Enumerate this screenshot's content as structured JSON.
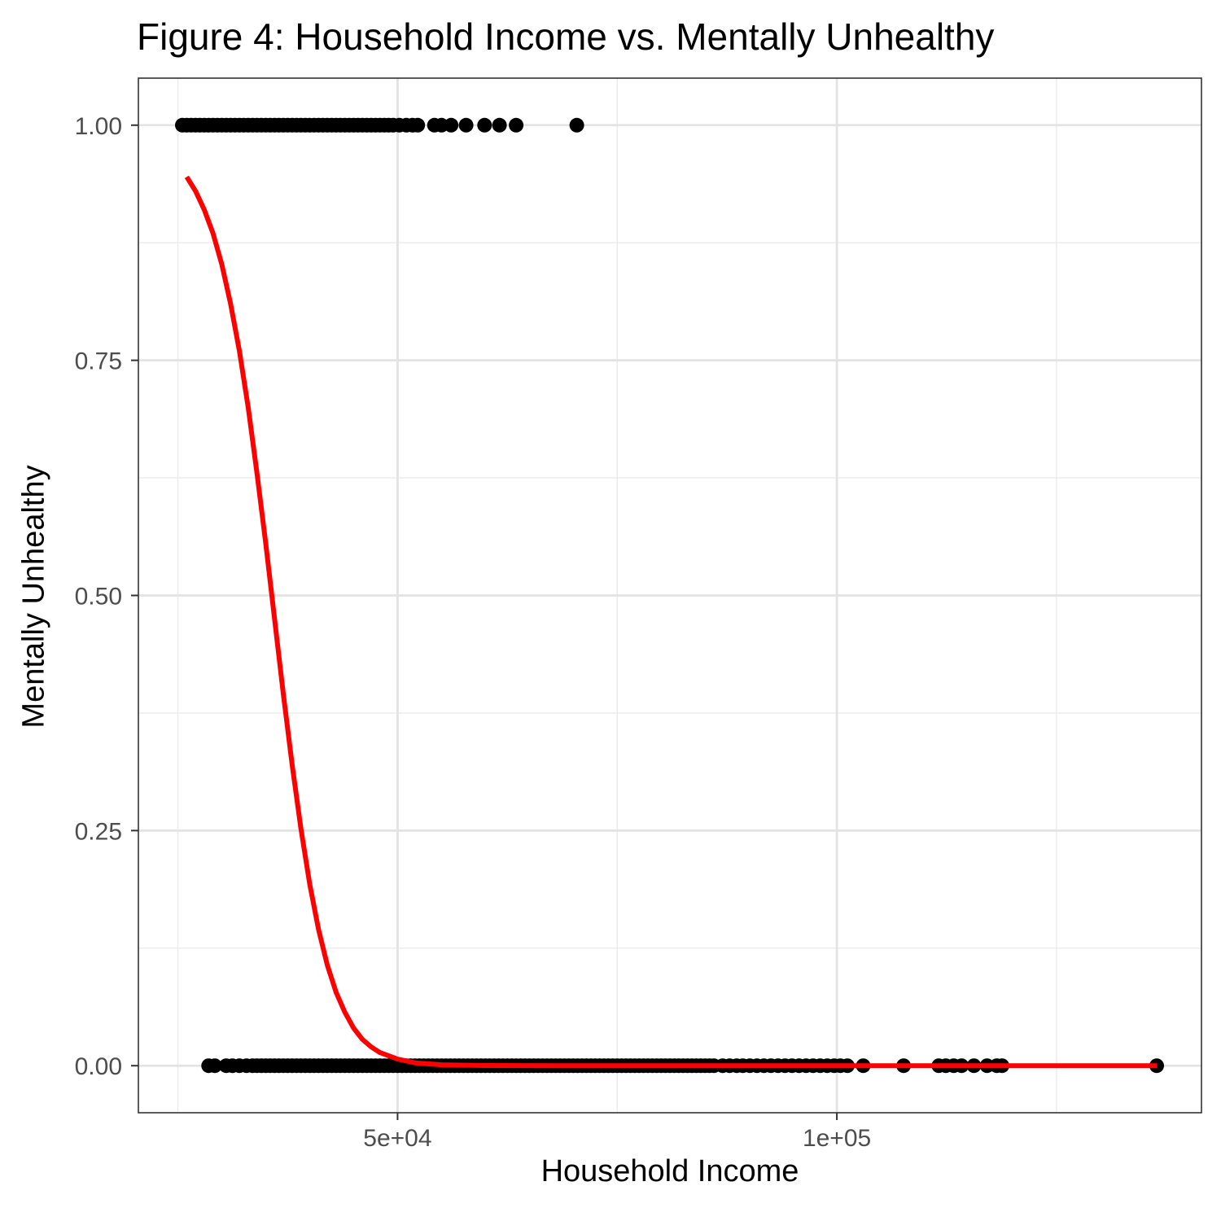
{
  "chart_data": {
    "type": "scatter",
    "title": "Figure 4: Household Income vs. Mentally Unhealthy",
    "xlabel": "Household Income",
    "ylabel": "Mentally Unhealthy",
    "xlim": [
      20500,
      141500
    ],
    "ylim": [
      -0.05,
      1.05
    ],
    "x_ticks": [
      {
        "value": 50000,
        "label": "5e+04"
      },
      {
        "value": 100000,
        "label": "1e+05"
      }
    ],
    "x_minor_ticks": [
      25000,
      75000,
      125000
    ],
    "y_ticks": [
      {
        "value": 0.0,
        "label": "0.00"
      },
      {
        "value": 0.25,
        "label": "0.25"
      },
      {
        "value": 0.5,
        "label": "0.50"
      },
      {
        "value": 0.75,
        "label": "0.75"
      },
      {
        "value": 1.0,
        "label": "1.00"
      }
    ],
    "y_minor_ticks": [
      0.125,
      0.375,
      0.625,
      0.875
    ],
    "grid": true,
    "series": [
      {
        "kind": "points",
        "color": "#000000",
        "points": [
          {
            "x": 25500,
            "y": 1
          },
          {
            "x": 26000,
            "y": 1
          },
          {
            "x": 26500,
            "y": 1
          },
          {
            "x": 27000,
            "y": 1
          },
          {
            "x": 27500,
            "y": 1
          },
          {
            "x": 28000,
            "y": 1
          },
          {
            "x": 28500,
            "y": 1
          },
          {
            "x": 29000,
            "y": 1
          },
          {
            "x": 29500,
            "y": 1
          },
          {
            "x": 30000,
            "y": 1
          },
          {
            "x": 30500,
            "y": 1
          },
          {
            "x": 31000,
            "y": 1
          },
          {
            "x": 31500,
            "y": 1
          },
          {
            "x": 32000,
            "y": 1
          },
          {
            "x": 32500,
            "y": 1
          },
          {
            "x": 33000,
            "y": 1
          },
          {
            "x": 33500,
            "y": 1
          },
          {
            "x": 34000,
            "y": 1
          },
          {
            "x": 34500,
            "y": 1
          },
          {
            "x": 35000,
            "y": 1
          },
          {
            "x": 35500,
            "y": 1
          },
          {
            "x": 36000,
            "y": 1
          },
          {
            "x": 36500,
            "y": 1
          },
          {
            "x": 37000,
            "y": 1
          },
          {
            "x": 37500,
            "y": 1
          },
          {
            "x": 38000,
            "y": 1
          },
          {
            "x": 38500,
            "y": 1
          },
          {
            "x": 39000,
            "y": 1
          },
          {
            "x": 39500,
            "y": 1
          },
          {
            "x": 40000,
            "y": 1
          },
          {
            "x": 40500,
            "y": 1
          },
          {
            "x": 41000,
            "y": 1
          },
          {
            "x": 41500,
            "y": 1
          },
          {
            "x": 42000,
            "y": 1
          },
          {
            "x": 42500,
            "y": 1
          },
          {
            "x": 43000,
            "y": 1
          },
          {
            "x": 43500,
            "y": 1
          },
          {
            "x": 44000,
            "y": 1
          },
          {
            "x": 44500,
            "y": 1
          },
          {
            "x": 45000,
            "y": 1
          },
          {
            "x": 45500,
            "y": 1
          },
          {
            "x": 46000,
            "y": 1
          },
          {
            "x": 46500,
            "y": 1
          },
          {
            "x": 47000,
            "y": 1
          },
          {
            "x": 47500,
            "y": 1
          },
          {
            "x": 48000,
            "y": 1
          },
          {
            "x": 48500,
            "y": 1
          },
          {
            "x": 49000,
            "y": 1
          },
          {
            "x": 49500,
            "y": 1
          },
          {
            "x": 50200,
            "y": 1
          },
          {
            "x": 51000,
            "y": 1
          },
          {
            "x": 51700,
            "y": 1
          },
          {
            "x": 52300,
            "y": 1
          },
          {
            "x": 54200,
            "y": 1
          },
          {
            "x": 55000,
            "y": 1
          },
          {
            "x": 56100,
            "y": 1
          },
          {
            "x": 57800,
            "y": 1
          },
          {
            "x": 59900,
            "y": 1
          },
          {
            "x": 61600,
            "y": 1
          },
          {
            "x": 63500,
            "y": 1
          },
          {
            "x": 70400,
            "y": 1
          },
          {
            "x": 28500,
            "y": 0
          },
          {
            "x": 29200,
            "y": 0
          },
          {
            "x": 30500,
            "y": 0
          },
          {
            "x": 31200,
            "y": 0
          },
          {
            "x": 32000,
            "y": 0
          },
          {
            "x": 32800,
            "y": 0
          },
          {
            "x": 33500,
            "y": 0
          },
          {
            "x": 34000,
            "y": 0
          },
          {
            "x": 34500,
            "y": 0
          },
          {
            "x": 35000,
            "y": 0
          },
          {
            "x": 35500,
            "y": 0
          },
          {
            "x": 36000,
            "y": 0
          },
          {
            "x": 36500,
            "y": 0
          },
          {
            "x": 37000,
            "y": 0
          },
          {
            "x": 37500,
            "y": 0
          },
          {
            "x": 38000,
            "y": 0
          },
          {
            "x": 38500,
            "y": 0
          },
          {
            "x": 39000,
            "y": 0
          },
          {
            "x": 39500,
            "y": 0
          },
          {
            "x": 40000,
            "y": 0
          },
          {
            "x": 40500,
            "y": 0
          },
          {
            "x": 41000,
            "y": 0
          },
          {
            "x": 41500,
            "y": 0
          },
          {
            "x": 42000,
            "y": 0
          },
          {
            "x": 42500,
            "y": 0
          },
          {
            "x": 43000,
            "y": 0
          },
          {
            "x": 43500,
            "y": 0
          },
          {
            "x": 44000,
            "y": 0
          },
          {
            "x": 44500,
            "y": 0
          },
          {
            "x": 45000,
            "y": 0
          },
          {
            "x": 45500,
            "y": 0
          },
          {
            "x": 46000,
            "y": 0
          },
          {
            "x": 46500,
            "y": 0
          },
          {
            "x": 47000,
            "y": 0
          },
          {
            "x": 47500,
            "y": 0
          },
          {
            "x": 48000,
            "y": 0
          },
          {
            "x": 48500,
            "y": 0
          },
          {
            "x": 49000,
            "y": 0
          },
          {
            "x": 49500,
            "y": 0
          },
          {
            "x": 50000,
            "y": 0
          },
          {
            "x": 50500,
            "y": 0
          },
          {
            "x": 51000,
            "y": 0
          },
          {
            "x": 51500,
            "y": 0
          },
          {
            "x": 52000,
            "y": 0
          },
          {
            "x": 52500,
            "y": 0
          },
          {
            "x": 53000,
            "y": 0
          },
          {
            "x": 53500,
            "y": 0
          },
          {
            "x": 54000,
            "y": 0
          },
          {
            "x": 54500,
            "y": 0
          },
          {
            "x": 55000,
            "y": 0
          },
          {
            "x": 55500,
            "y": 0
          },
          {
            "x": 56000,
            "y": 0
          },
          {
            "x": 56500,
            "y": 0
          },
          {
            "x": 57000,
            "y": 0
          },
          {
            "x": 57500,
            "y": 0
          },
          {
            "x": 58000,
            "y": 0
          },
          {
            "x": 58500,
            "y": 0
          },
          {
            "x": 59000,
            "y": 0
          },
          {
            "x": 59500,
            "y": 0
          },
          {
            "x": 60000,
            "y": 0
          },
          {
            "x": 60500,
            "y": 0
          },
          {
            "x": 61000,
            "y": 0
          },
          {
            "x": 61500,
            "y": 0
          },
          {
            "x": 62000,
            "y": 0
          },
          {
            "x": 62500,
            "y": 0
          },
          {
            "x": 63000,
            "y": 0
          },
          {
            "x": 63500,
            "y": 0
          },
          {
            "x": 64000,
            "y": 0
          },
          {
            "x": 64500,
            "y": 0
          },
          {
            "x": 65000,
            "y": 0
          },
          {
            "x": 65500,
            "y": 0
          },
          {
            "x": 66000,
            "y": 0
          },
          {
            "x": 66500,
            "y": 0
          },
          {
            "x": 67000,
            "y": 0
          },
          {
            "x": 67500,
            "y": 0
          },
          {
            "x": 68000,
            "y": 0
          },
          {
            "x": 68500,
            "y": 0
          },
          {
            "x": 69000,
            "y": 0
          },
          {
            "x": 69500,
            "y": 0
          },
          {
            "x": 70000,
            "y": 0
          },
          {
            "x": 70500,
            "y": 0
          },
          {
            "x": 71000,
            "y": 0
          },
          {
            "x": 71500,
            "y": 0
          },
          {
            "x": 72000,
            "y": 0
          },
          {
            "x": 72500,
            "y": 0
          },
          {
            "x": 73000,
            "y": 0
          },
          {
            "x": 73500,
            "y": 0
          },
          {
            "x": 74000,
            "y": 0
          },
          {
            "x": 74500,
            "y": 0
          },
          {
            "x": 75000,
            "y": 0
          },
          {
            "x": 75500,
            "y": 0
          },
          {
            "x": 76000,
            "y": 0
          },
          {
            "x": 76500,
            "y": 0
          },
          {
            "x": 77000,
            "y": 0
          },
          {
            "x": 77500,
            "y": 0
          },
          {
            "x": 78000,
            "y": 0
          },
          {
            "x": 78500,
            "y": 0
          },
          {
            "x": 79000,
            "y": 0
          },
          {
            "x": 79500,
            "y": 0
          },
          {
            "x": 80000,
            "y": 0
          },
          {
            "x": 80500,
            "y": 0
          },
          {
            "x": 81000,
            "y": 0
          },
          {
            "x": 81500,
            "y": 0
          },
          {
            "x": 82000,
            "y": 0
          },
          {
            "x": 82500,
            "y": 0
          },
          {
            "x": 83000,
            "y": 0
          },
          {
            "x": 83500,
            "y": 0
          },
          {
            "x": 84000,
            "y": 0
          },
          {
            "x": 84500,
            "y": 0
          },
          {
            "x": 85000,
            "y": 0
          },
          {
            "x": 85500,
            "y": 0
          },
          {
            "x": 86000,
            "y": 0
          },
          {
            "x": 87000,
            "y": 0
          },
          {
            "x": 87800,
            "y": 0
          },
          {
            "x": 88600,
            "y": 0
          },
          {
            "x": 89300,
            "y": 0
          },
          {
            "x": 90100,
            "y": 0
          },
          {
            "x": 90900,
            "y": 0
          },
          {
            "x": 91700,
            "y": 0
          },
          {
            "x": 92500,
            "y": 0
          },
          {
            "x": 93300,
            "y": 0
          },
          {
            "x": 94100,
            "y": 0
          },
          {
            "x": 94900,
            "y": 0
          },
          {
            "x": 95700,
            "y": 0
          },
          {
            "x": 96500,
            "y": 0
          },
          {
            "x": 97300,
            "y": 0
          },
          {
            "x": 98100,
            "y": 0
          },
          {
            "x": 98900,
            "y": 0
          },
          {
            "x": 99700,
            "y": 0
          },
          {
            "x": 100400,
            "y": 0
          },
          {
            "x": 101200,
            "y": 0
          },
          {
            "x": 103000,
            "y": 0
          },
          {
            "x": 107600,
            "y": 0
          },
          {
            "x": 111600,
            "y": 0
          },
          {
            "x": 112400,
            "y": 0
          },
          {
            "x": 113300,
            "y": 0
          },
          {
            "x": 114200,
            "y": 0
          },
          {
            "x": 115600,
            "y": 0
          },
          {
            "x": 117100,
            "y": 0
          },
          {
            "x": 118200,
            "y": 0
          },
          {
            "x": 118800,
            "y": 0
          },
          {
            "x": 136400,
            "y": 0
          }
        ]
      },
      {
        "kind": "fit-line",
        "color": "#ff0000",
        "points": [
          {
            "x": 26000,
            "y": 0.945
          },
          {
            "x": 27000,
            "y": 0.93
          },
          {
            "x": 28000,
            "y": 0.91
          },
          {
            "x": 29000,
            "y": 0.885
          },
          {
            "x": 30000,
            "y": 0.852
          },
          {
            "x": 31000,
            "y": 0.81
          },
          {
            "x": 32000,
            "y": 0.76
          },
          {
            "x": 33000,
            "y": 0.7
          },
          {
            "x": 34000,
            "y": 0.63
          },
          {
            "x": 35000,
            "y": 0.555
          },
          {
            "x": 36000,
            "y": 0.475
          },
          {
            "x": 37000,
            "y": 0.395
          },
          {
            "x": 38000,
            "y": 0.32
          },
          {
            "x": 39000,
            "y": 0.252
          },
          {
            "x": 40000,
            "y": 0.193
          },
          {
            "x": 41000,
            "y": 0.145
          },
          {
            "x": 42000,
            "y": 0.107
          },
          {
            "x": 43000,
            "y": 0.078
          },
          {
            "x": 44000,
            "y": 0.057
          },
          {
            "x": 45000,
            "y": 0.04
          },
          {
            "x": 46000,
            "y": 0.028
          },
          {
            "x": 47000,
            "y": 0.02
          },
          {
            "x": 48000,
            "y": 0.014
          },
          {
            "x": 50000,
            "y": 0.007
          },
          {
            "x": 52000,
            "y": 0.003
          },
          {
            "x": 55000,
            "y": 0.001
          },
          {
            "x": 60000,
            "y": 0.0002
          },
          {
            "x": 70000,
            "y": 0.0
          },
          {
            "x": 90000,
            "y": 0.0
          },
          {
            "x": 110000,
            "y": 0.0
          },
          {
            "x": 136400,
            "y": 0.0
          }
        ]
      }
    ]
  }
}
